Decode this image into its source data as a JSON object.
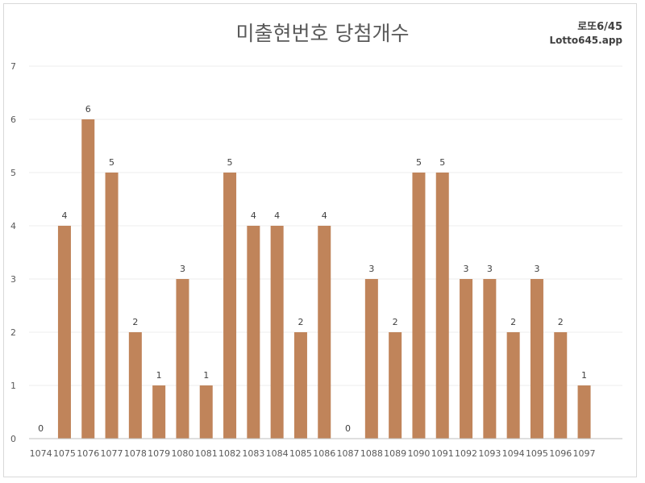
{
  "chart_data": {
    "type": "bar",
    "title": "미출현번호 당첨개수",
    "xlabel": "",
    "ylabel": "",
    "ylim": [
      0,
      7
    ],
    "yticks": [
      "0",
      "1",
      "2",
      "3",
      "4",
      "5",
      "6",
      "7"
    ],
    "grid": true,
    "legend": "none",
    "bar_color": "#c0845a",
    "categories": [
      "1074",
      "1075",
      "1076",
      "1077",
      "1078",
      "1079",
      "1080",
      "1081",
      "1082",
      "1083",
      "1084",
      "1085",
      "1086",
      "1087",
      "1088",
      "1089",
      "1090",
      "1091",
      "1092",
      "1093",
      "1094",
      "1095",
      "1096",
      "1097"
    ],
    "values": [
      0,
      4,
      6,
      5,
      2,
      1,
      3,
      1,
      5,
      4,
      4,
      2,
      4,
      0,
      3,
      2,
      5,
      5,
      3,
      3,
      2,
      3,
      2,
      1
    ]
  },
  "brand": {
    "line1": "로또6/45",
    "line2": "Lotto645.app"
  }
}
